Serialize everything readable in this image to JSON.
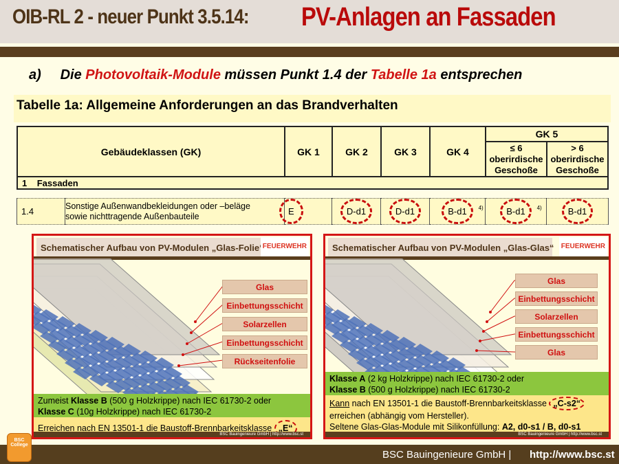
{
  "title": {
    "prefix": "OIB-RL 2 - neuer Punkt 3.5.14:",
    "highlight": "PV-Anlagen an Fassaden"
  },
  "subtitle": {
    "marker": "a)",
    "p1": "Die ",
    "red1": "Photovoltaik-Module",
    "p2": " müssen Punkt 1.4 der ",
    "red2": "Tabelle 1a",
    "p3": " entsprechen"
  },
  "table": {
    "title": "Tabelle 1a: Allgemeine Anforderungen an das Brandverhalten",
    "header_label": "Gebäudeklassen (GK)",
    "columns": [
      "GK 1",
      "GK 2",
      "GK 3",
      "GK 4"
    ],
    "gk5": {
      "label": "GK 5",
      "sub1": "≤ 6 oberirdische Geschoße",
      "sub2": "> 6 oberirdische Geschoße"
    },
    "section": {
      "num": "1",
      "label": "Fassaden"
    },
    "row": {
      "num": "1.4",
      "desc_line1": "Sonstige Außenwandbekleidungen oder –beläge",
      "desc_line2": "sowie nichttragende Außenbauteile",
      "values": [
        "E",
        "D-d1",
        "D-d1",
        "B-d1",
        "B-d1",
        "B-d1"
      ],
      "footnote": "4)"
    }
  },
  "panel_left": {
    "title": "Schematischer Aufbau von PV-Modulen „Glas-Folie“",
    "logo": "FEUERWEHR",
    "layers": [
      "Glas",
      "Einbettungsschicht",
      "Solarzellen",
      "Einbettungsschicht",
      "Rückseitenfolie"
    ],
    "green_l1_pre": "Zumeist ",
    "green_l1_bold": "Klasse B",
    "green_l1_post": " (500 g Holzkrippe) nach IEC 61730-2 oder",
    "green_l2_bold": "Klasse C",
    "green_l2_post": " (10g Holzkrippe) nach IEC 61730-2",
    "yellow_text": "Erreichen nach EN 13501-1 die Baustoff-Brennbarkeitsklasse ",
    "yellow_class": "„E“",
    "footer": "BSC Bauingenieure GmbH |   http://www.bsc.st"
  },
  "panel_right": {
    "title": "Schematischer Aufbau von PV-Modulen „Glas-Glas“",
    "logo": "FEUERWEHR",
    "layers": [
      "Glas",
      "Einbettungsschicht",
      "Solarzellen",
      "Einbettungsschicht",
      "Glas"
    ],
    "green_l1_bold": "Klasse A",
    "green_l1_post": " (2 kg Holzkrippe) nach IEC 61730-2 oder",
    "green_l2_bold": "Klasse B",
    "green_l2_post": " (500 g Holzkrippe) nach IEC 61730-2",
    "y_kann": "Kann",
    "y_l1": " nach EN 13501-1 die Baustoff-Brennbarkeitsklasse ",
    "y_class": "„C-s2“",
    "y_l2": "erreichen (abhängig vom Hersteller).",
    "y_l3": "Seltene Glas-Glas-Module mit Silikonfüllung: ",
    "y_l3_bold": "A2, d0-s1 / B, d0-s1",
    "footer": "BSC Bauingenieure GmbH |   http://www.bsc.st"
  },
  "badge": "BSC College",
  "footer": {
    "company": "BSC Bauingenieure GmbH |",
    "url": "http://www.bsc.st"
  },
  "colors": {
    "brown": "#5a3e1e",
    "red": "#c80d0d",
    "green": "#8cc63e",
    "table_bg": "#fff9c6"
  }
}
